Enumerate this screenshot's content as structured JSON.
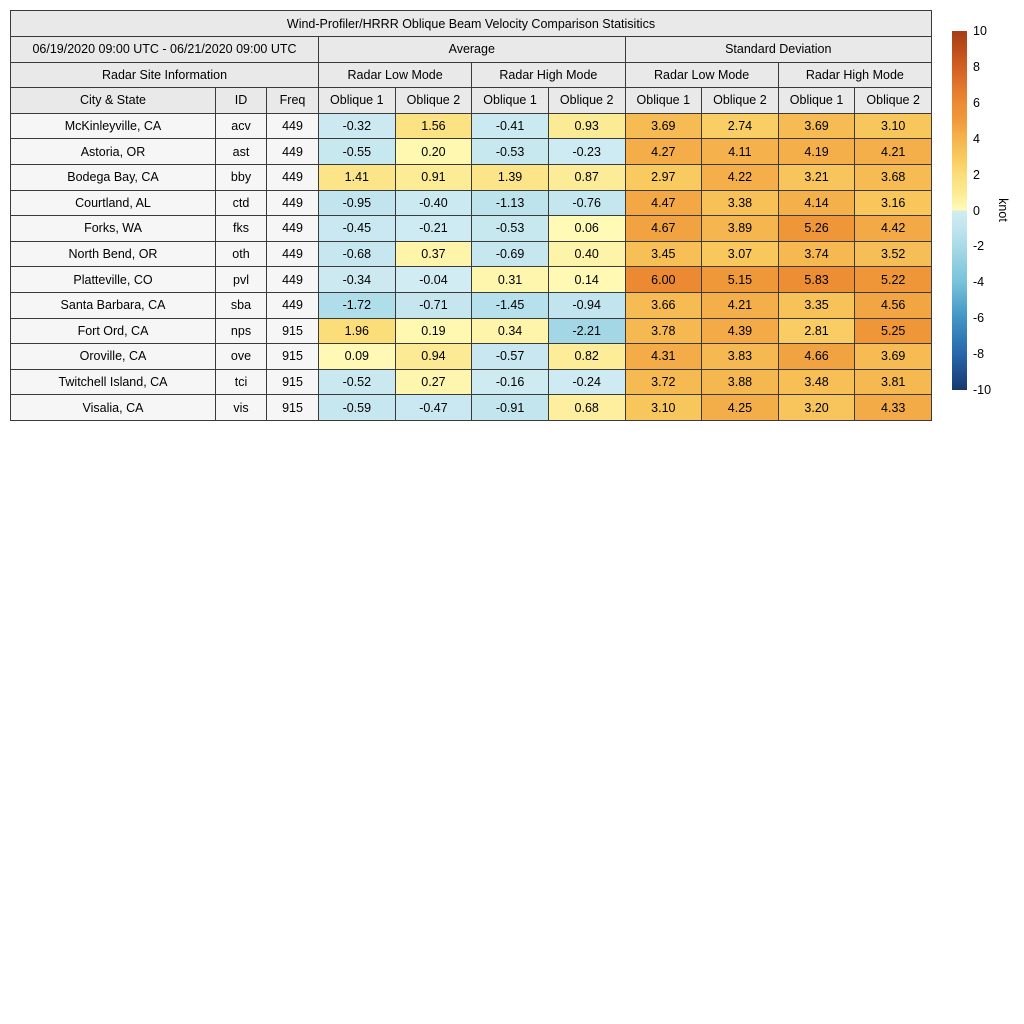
{
  "figure_title": "Wind-Profiler/HRRR Oblique Beam Velocity Comparison Statisitics",
  "table": {
    "date_range": "06/19/2020 09:00 UTC - 06/21/2020 09:00 UTC",
    "group_headers": {
      "average": "Average",
      "std": "Standard Deviation"
    },
    "site_info_header": "Radar Site Information",
    "mode_headers": [
      "Radar Low Mode",
      "Radar High Mode",
      "Radar Low Mode",
      "Radar High Mode"
    ],
    "column_headers": {
      "city": "City & State",
      "id": "ID",
      "freq": "Freq"
    },
    "oblique_headers": [
      "Oblique 1",
      "Oblique 2",
      "Oblique 1",
      "Oblique 2",
      "Oblique 1",
      "Oblique 2",
      "Oblique 1",
      "Oblique 2"
    ]
  },
  "chart_data": {
    "type": "heatmap",
    "title": "Wind-Profiler/HRRR Oblique Beam Velocity Comparison Statisitics",
    "period": "06/19/2020 09:00 UTC - 06/21/2020 09:00 UTC",
    "columns": [
      "Average / Radar Low Mode / Oblique 1",
      "Average / Radar Low Mode / Oblique 2",
      "Average / Radar High Mode / Oblique 1",
      "Average / Radar High Mode / Oblique 2",
      "Standard Deviation / Radar Low Mode / Oblique 1",
      "Standard Deviation / Radar Low Mode / Oblique 2",
      "Standard Deviation / Radar High Mode / Oblique 1",
      "Standard Deviation / Radar High Mode / Oblique 2"
    ],
    "sites": [
      {
        "city": "McKinleyville, CA",
        "id": "acv",
        "freq": "449",
        "values": [
          -0.32,
          1.56,
          -0.41,
          0.93,
          3.69,
          2.74,
          3.69,
          3.1
        ]
      },
      {
        "city": "Astoria, OR",
        "id": "ast",
        "freq": "449",
        "values": [
          -0.55,
          0.2,
          -0.53,
          -0.23,
          4.27,
          4.11,
          4.19,
          4.21
        ]
      },
      {
        "city": "Bodega Bay, CA",
        "id": "bby",
        "freq": "449",
        "values": [
          1.41,
          0.91,
          1.39,
          0.87,
          2.97,
          4.22,
          3.21,
          3.68
        ]
      },
      {
        "city": "Courtland, AL",
        "id": "ctd",
        "freq": "449",
        "values": [
          -0.95,
          -0.4,
          -1.13,
          -0.76,
          4.47,
          3.38,
          4.14,
          3.16
        ]
      },
      {
        "city": "Forks, WA",
        "id": "fks",
        "freq": "449",
        "values": [
          -0.45,
          -0.21,
          -0.53,
          0.06,
          4.67,
          3.89,
          5.26,
          4.42
        ]
      },
      {
        "city": "North Bend, OR",
        "id": "oth",
        "freq": "449",
        "values": [
          -0.68,
          0.37,
          -0.69,
          0.4,
          3.45,
          3.07,
          3.74,
          3.52
        ]
      },
      {
        "city": "Platteville, CO",
        "id": "pvl",
        "freq": "449",
        "values": [
          -0.34,
          -0.04,
          0.31,
          0.14,
          6.0,
          5.15,
          5.83,
          5.22
        ]
      },
      {
        "city": "Santa Barbara, CA",
        "id": "sba",
        "freq": "449",
        "values": [
          -1.72,
          -0.71,
          -1.45,
          -0.94,
          3.66,
          4.21,
          3.35,
          4.56
        ]
      },
      {
        "city": "Fort Ord, CA",
        "id": "nps",
        "freq": "915",
        "values": [
          1.96,
          0.19,
          0.34,
          -2.21,
          3.78,
          4.39,
          2.81,
          5.25
        ]
      },
      {
        "city": "Oroville, CA",
        "id": "ove",
        "freq": "915",
        "values": [
          0.09,
          0.94,
          -0.57,
          0.82,
          4.31,
          3.83,
          4.66,
          3.69
        ]
      },
      {
        "city": "Twitchell Island, CA",
        "id": "tci",
        "freq": "915",
        "values": [
          -0.52,
          0.27,
          -0.16,
          -0.24,
          3.72,
          3.88,
          3.48,
          3.81
        ]
      },
      {
        "city": "Visalia, CA",
        "id": "vis",
        "freq": "915",
        "values": [
          -0.59,
          -0.47,
          -0.91,
          0.68,
          3.1,
          4.25,
          3.2,
          4.33
        ]
      }
    ],
    "colorbar": {
      "label": "knot",
      "min": -10,
      "max": 10,
      "ticks": [
        10,
        8,
        6,
        4,
        2,
        0,
        -2,
        -4,
        -6,
        -8,
        -10
      ],
      "stops_positive": [
        [
          0,
          "#fffbb8"
        ],
        [
          1,
          "#fcea92"
        ],
        [
          2,
          "#fbdd79"
        ],
        [
          3,
          "#f8c95e"
        ],
        [
          4,
          "#f5b44e"
        ],
        [
          5,
          "#f09a3b"
        ],
        [
          6,
          "#ec8a33"
        ],
        [
          8,
          "#d45e24"
        ],
        [
          10,
          "#a73b13"
        ]
      ],
      "stops_negative": [
        [
          -10,
          "#17386e"
        ],
        [
          -8,
          "#2767ac"
        ],
        [
          -6,
          "#4094c4"
        ],
        [
          -4,
          "#79c2d9"
        ],
        [
          -3,
          "#8fcde0"
        ],
        [
          -2,
          "#a9dae7"
        ],
        [
          -1,
          "#c0e4ee"
        ],
        [
          0,
          "#d2ecf3"
        ]
      ]
    }
  },
  "colors": {
    "header_bg": "#e9e9e9",
    "label_cell_bg": "#f6f6f6",
    "border": "#3a3a3a",
    "background": "#ffffff"
  }
}
